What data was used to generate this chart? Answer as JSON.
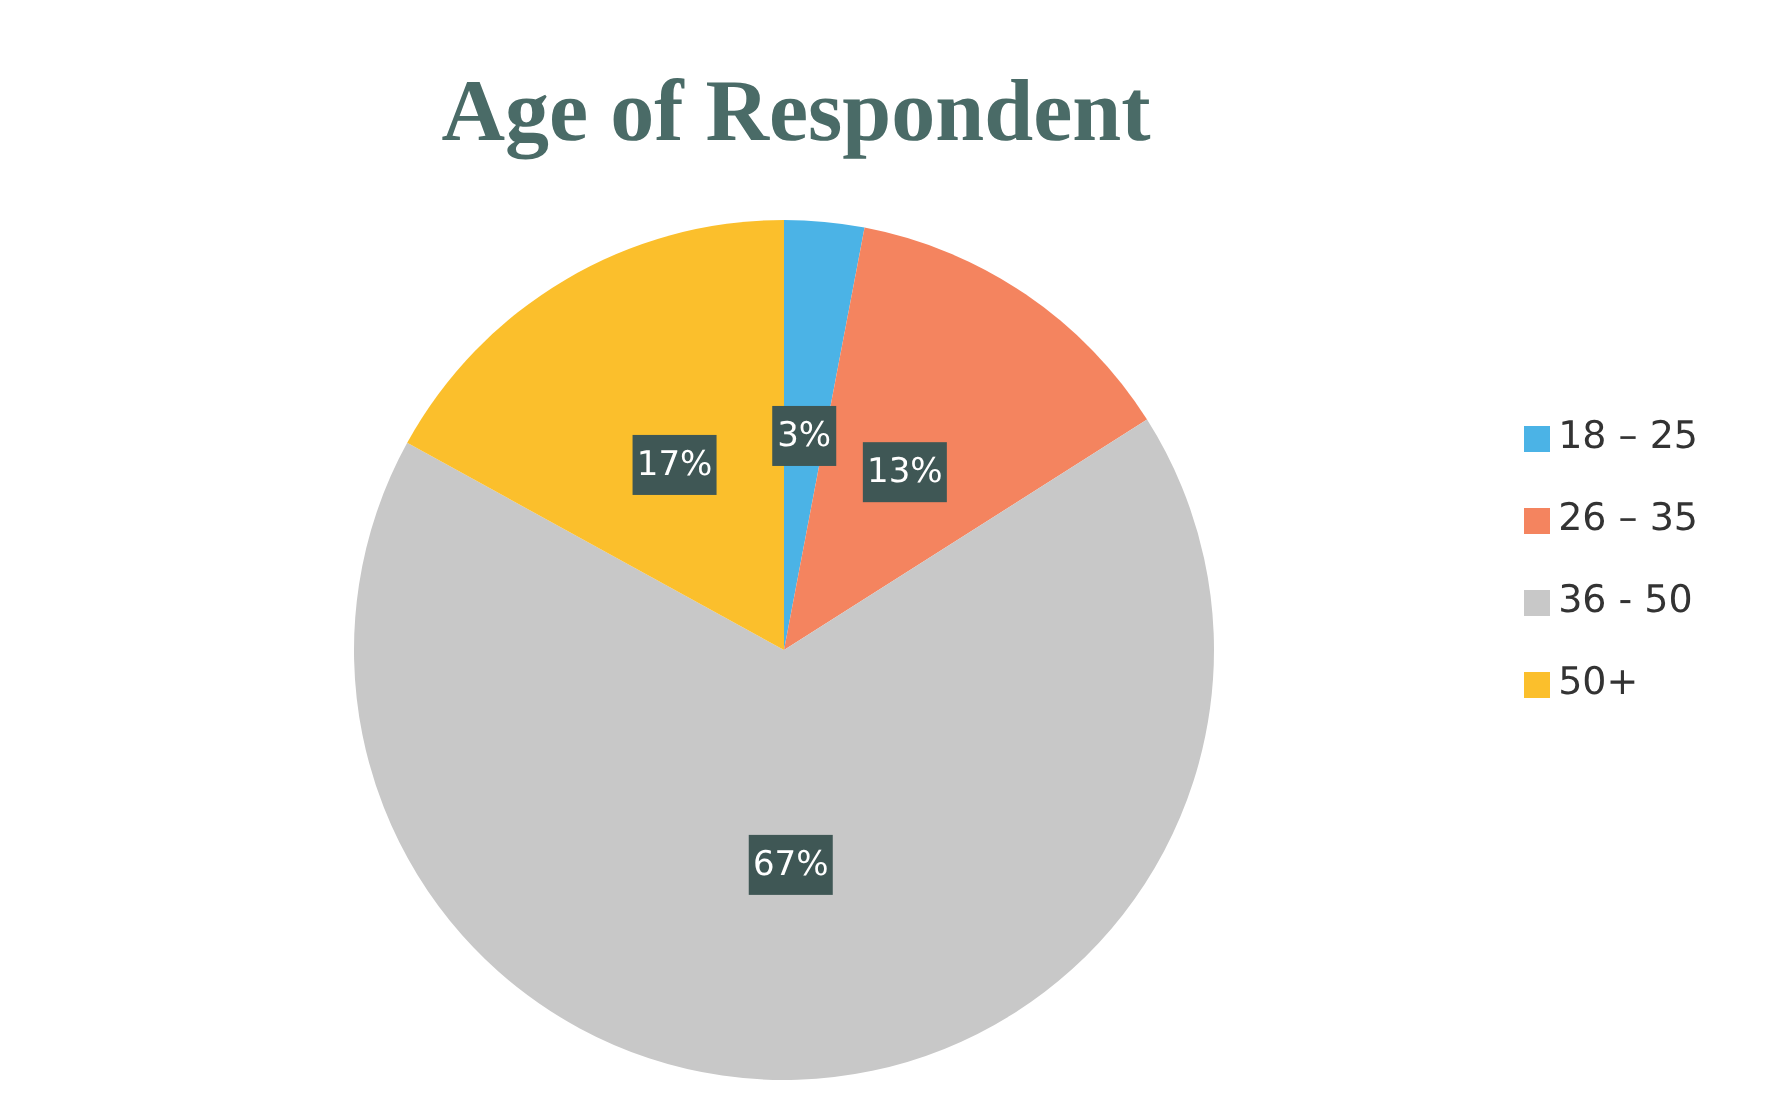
{
  "chart_data": {
    "type": "pie",
    "title": "Age of Respondent",
    "categories": [
      "18 – 25",
      "26 – 35",
      "36 - 50",
      "50+"
    ],
    "values": [
      3,
      13,
      67,
      17
    ],
    "colors": [
      "#4bb3e6",
      "#f4845f",
      "#c8c8c8",
      "#fbbf2c"
    ],
    "value_labels": [
      "3%",
      "13%",
      "67%",
      "17%"
    ],
    "legend": "right"
  }
}
